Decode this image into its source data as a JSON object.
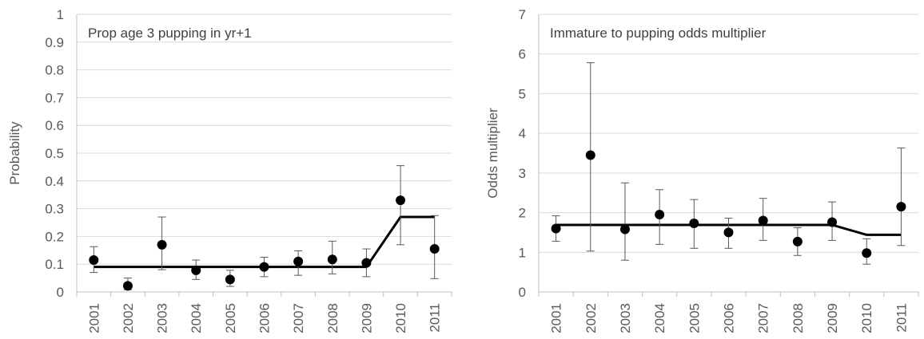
{
  "chart_data": [
    {
      "type": "scatter",
      "title": "Prop age 3 pupping in yr+1",
      "xlabel": "",
      "ylabel": "Probability",
      "categories": [
        "2001",
        "2002",
        "2003",
        "2004",
        "2005",
        "2006",
        "2007",
        "2008",
        "2009",
        "2010",
        "2011"
      ],
      "ylim": [
        0,
        1
      ],
      "yticks": [
        "0",
        "0.1",
        "0.2",
        "0.3",
        "0.4",
        "0.5",
        "0.6",
        "0.7",
        "0.8",
        "0.9",
        "1"
      ],
      "grid": true,
      "series": [
        {
          "values": [
            0.115,
            0.022,
            0.17,
            0.078,
            0.045,
            0.09,
            0.11,
            0.117,
            0.105,
            0.33,
            0.155
          ],
          "err_low": [
            0.07,
            0.008,
            0.08,
            0.045,
            0.02,
            0.055,
            0.06,
            0.065,
            0.055,
            0.17,
            0.048
          ],
          "err_high": [
            0.163,
            0.05,
            0.27,
            0.115,
            0.078,
            0.125,
            0.148,
            0.183,
            0.155,
            0.455,
            0.275
          ]
        },
        {
          "kind": "line",
          "values": [
            0.09,
            0.09,
            0.09,
            0.09,
            0.09,
            0.09,
            0.09,
            0.09,
            0.09,
            0.27,
            0.27
          ]
        }
      ]
    },
    {
      "type": "scatter",
      "title": "Immature to pupping odds multiplier",
      "xlabel": "",
      "ylabel": "Odds multiplier",
      "categories": [
        "2001",
        "2002",
        "2003",
        "2004",
        "2005",
        "2006",
        "2007",
        "2008",
        "2009",
        "2010",
        "2011"
      ],
      "ylim": [
        0,
        7
      ],
      "yticks": [
        "0",
        "1",
        "2",
        "3",
        "4",
        "5",
        "6",
        "7"
      ],
      "grid": true,
      "series": [
        {
          "values": [
            1.6,
            3.45,
            1.58,
            1.95,
            1.73,
            1.5,
            1.8,
            1.27,
            1.76,
            0.98,
            2.15
          ],
          "err_low": [
            1.28,
            1.03,
            0.8,
            1.2,
            1.1,
            1.1,
            1.3,
            0.92,
            1.3,
            0.7,
            1.17
          ],
          "err_high": [
            1.92,
            5.78,
            2.75,
            2.58,
            2.33,
            1.86,
            2.36,
            1.62,
            2.27,
            1.34,
            3.63
          ]
        },
        {
          "kind": "line",
          "values": [
            1.69,
            1.69,
            1.69,
            1.69,
            1.69,
            1.69,
            1.69,
            1.69,
            1.69,
            1.44,
            1.44
          ]
        }
      ]
    }
  ]
}
